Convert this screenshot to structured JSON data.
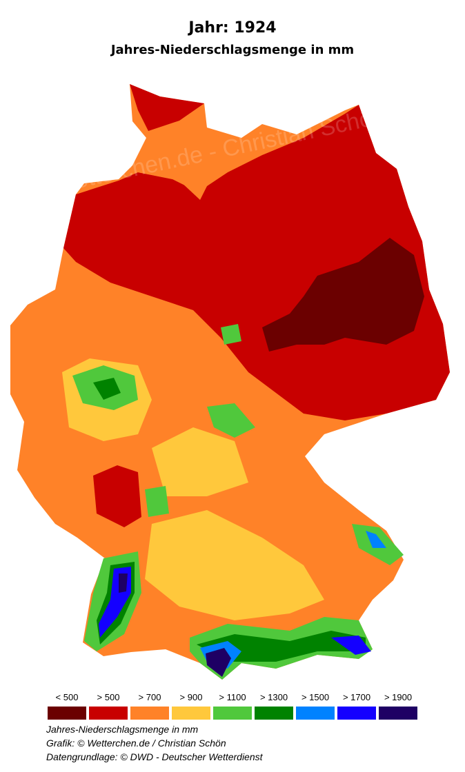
{
  "title": "Jahr: 1924",
  "subtitle": "Jahres-Niederschlagsmenge in mm",
  "watermark": "Wetterchen.de - Christian Schön",
  "legend": [
    {
      "label": "< 500",
      "color": "#6b0000"
    },
    {
      "label": "> 500",
      "color": "#c80000"
    },
    {
      "label": "> 700",
      "color": "#ff8228"
    },
    {
      "label": "> 900",
      "color": "#ffc83c"
    },
    {
      "label": "> 1100",
      "color": "#50c83c"
    },
    {
      "label": "> 1300",
      "color": "#008200"
    },
    {
      "label": "> 1500",
      "color": "#0082ff"
    },
    {
      "label": "> 1700",
      "color": "#1400ff"
    },
    {
      "label": "> 1900",
      "color": "#1e0064"
    }
  ],
  "footer": {
    "line1": "Jahres-Niederschlagsmenge in mm",
    "line2": "Grafik: © Wetterchen.de / Christian Schön",
    "line3": "Datengrundlage: © DWD - Deutscher Wetterdienst"
  }
}
